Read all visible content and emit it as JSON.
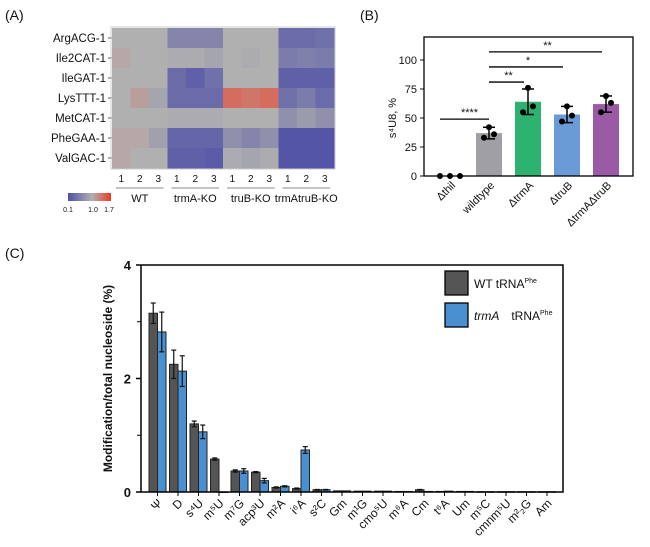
{
  "panel_labels": {
    "a": "(A)",
    "b": "(B)",
    "c": "(C)"
  },
  "colors": {
    "low": "#5050a8",
    "mid": "#b0b0b0",
    "high": "#f03a22",
    "wt_bar": "#555555",
    "trma_bar": "#4a90d0",
    "b_bars": [
      "#a0a0a4",
      "#a0a0a4",
      "#2db36f",
      "#6a9bd6",
      "#9a5aa6"
    ]
  },
  "chart_data": [
    {
      "type": "heatmap",
      "rows": [
        "ArgACG-1",
        "Ile2CAT-1",
        "IleGAT-1",
        "LysTTT-1",
        "MetCAT-1",
        "PheGAA-1",
        "ValGAC-1"
      ],
      "groups": [
        "WT",
        "trmA-KO",
        "truB-KO",
        "trmAtruB-KO"
      ],
      "replicates": [
        "1",
        "2",
        "3"
      ],
      "values": [
        [
          1.0,
          1.0,
          1.0,
          0.6,
          0.6,
          0.6,
          1.0,
          1.0,
          1.0,
          0.35,
          0.35,
          0.4
        ],
        [
          1.05,
          1.0,
          1.0,
          0.95,
          0.95,
          0.9,
          1.0,
          0.95,
          1.0,
          0.5,
          0.55,
          0.5
        ],
        [
          1.0,
          1.0,
          1.0,
          0.35,
          0.25,
          0.4,
          1.0,
          1.0,
          1.0,
          0.25,
          0.25,
          0.25
        ],
        [
          1.0,
          1.1,
          0.9,
          0.35,
          0.35,
          0.35,
          1.4,
          1.35,
          1.4,
          0.4,
          0.5,
          0.35
        ],
        [
          1.0,
          1.0,
          1.0,
          0.95,
          0.95,
          0.95,
          1.0,
          1.0,
          1.0,
          0.7,
          0.8,
          0.7
        ],
        [
          1.05,
          1.05,
          0.85,
          0.3,
          0.3,
          0.3,
          0.7,
          0.6,
          0.7,
          0.15,
          0.15,
          0.15
        ],
        [
          1.05,
          1.0,
          1.0,
          0.25,
          0.25,
          0.2,
          0.95,
          0.9,
          0.95,
          0.15,
          0.15,
          0.15
        ]
      ],
      "scale": {
        "min": 0.1,
        "mid": 1.0,
        "max": 1.7,
        "tick_labels": [
          "0.1",
          "1.0",
          "1.7"
        ]
      }
    },
    {
      "type": "bar",
      "categories": [
        "Δthil",
        "wildtype",
        "ΔtrmA",
        "ΔtruB",
        "ΔtrmAΔtruB"
      ],
      "values": [
        0,
        37,
        64,
        53,
        62
      ],
      "points": [
        [
          0,
          0,
          0
        ],
        [
          33,
          42,
          36
        ],
        [
          55,
          76,
          60
        ],
        [
          47,
          60,
          52
        ],
        [
          55,
          69,
          63
        ]
      ],
      "error_low": [
        0,
        32,
        53,
        46,
        55
      ],
      "error_high": [
        0,
        42,
        75,
        60,
        69
      ],
      "ylabel": "s⁴U8, %",
      "ylim": [
        0,
        120
      ],
      "yticks": [
        0,
        25,
        50,
        75,
        100
      ],
      "significance": [
        {
          "from": 0,
          "to": 1,
          "label": "****",
          "y": 49
        },
        {
          "from": 1,
          "to": 2,
          "label": "**",
          "y": 81
        },
        {
          "from": 1,
          "to": 3,
          "label": "*",
          "y": 94
        },
        {
          "from": 1,
          "to": 4,
          "label": "**",
          "y": 107
        }
      ]
    },
    {
      "type": "bar",
      "categories": [
        "Ψ",
        "D",
        "s⁴U",
        "m⁵U",
        "m⁷G",
        "acp³U",
        "m²A",
        "i⁶A",
        "s²C",
        "Gm",
        "m¹G",
        "cmo⁵U",
        "m⁶A",
        "Cm",
        "t⁶A",
        "Um",
        "m⁵C",
        "cmnm⁵U",
        "m²₂G",
        "Am"
      ],
      "series": [
        {
          "name": "WT tRNA",
          "name_sup": "Phe",
          "values": [
            3.15,
            2.25,
            1.2,
            0.58,
            0.37,
            0.35,
            0.08,
            0.06,
            0.04,
            0.02,
            0.015,
            0.015,
            0.01,
            0.04,
            0.01,
            0.01,
            0.005,
            0.005,
            0.005,
            0.005
          ],
          "errors": [
            0.18,
            0.25,
            0.05,
            0.02,
            0.02,
            0.01,
            0.01,
            0.01,
            0.005,
            0,
            0,
            0,
            0,
            0.005,
            0,
            0,
            0,
            0,
            0,
            0
          ]
        },
        {
          "name": "trmA",
          "name_suffix": "tRNA",
          "name_sup": "Phe",
          "values": [
            2.82,
            2.13,
            1.06,
            0.0,
            0.37,
            0.2,
            0.1,
            0.74,
            0.04,
            0.02,
            0.015,
            0.015,
            0.01,
            0.01,
            0.015,
            0.01,
            0.005,
            0.005,
            0.005,
            0.005
          ],
          "errors": [
            0.35,
            0.27,
            0.12,
            0,
            0.04,
            0.04,
            0.01,
            0.06,
            0.005,
            0,
            0,
            0,
            0,
            0,
            0,
            0,
            0,
            0,
            0,
            0
          ]
        }
      ],
      "ylabel": "Modification/total nucleoside (%)",
      "ylim": [
        0,
        4
      ],
      "yticks": [
        0,
        2,
        4
      ],
      "legend": "top-right"
    }
  ]
}
